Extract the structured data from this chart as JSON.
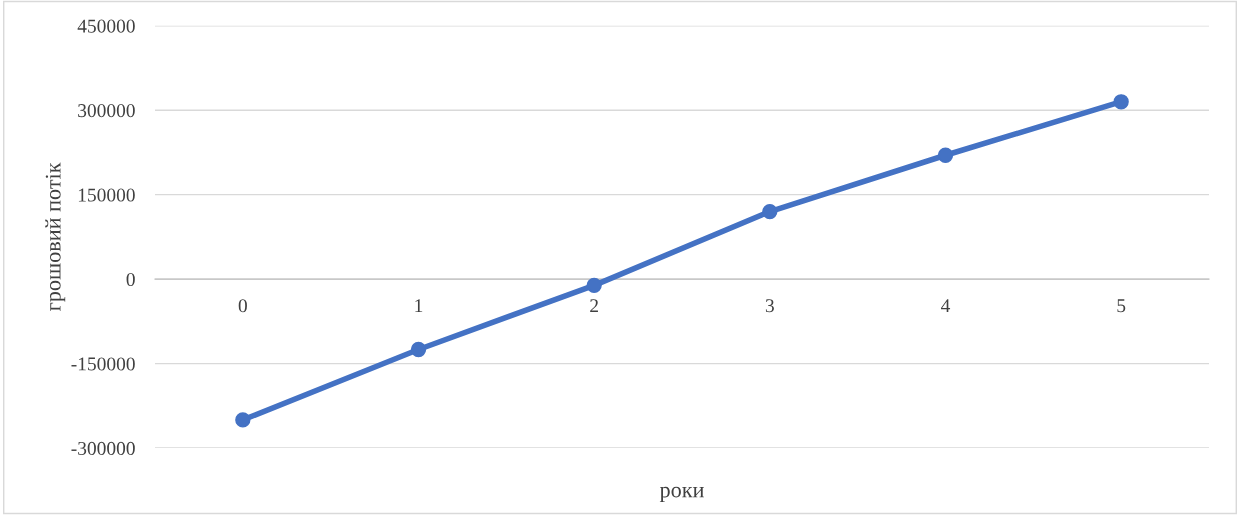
{
  "chart_data": {
    "type": "line",
    "xlabel": "роки",
    "ylabel": "грошовий потік",
    "categories": [
      "0",
      "1",
      "2",
      "3",
      "4",
      "5"
    ],
    "series": [
      {
        "color": "#4472c4",
        "values": [
          -250000,
          -125000,
          -11000,
          120000,
          220000,
          315000
        ]
      }
    ],
    "ylim": [
      -300000,
      450000
    ],
    "yticks": [
      -300000,
      -150000,
      0,
      150000,
      300000,
      450000
    ],
    "grid": "y",
    "marker": "circle",
    "line_style": "solid",
    "legend": false
  }
}
